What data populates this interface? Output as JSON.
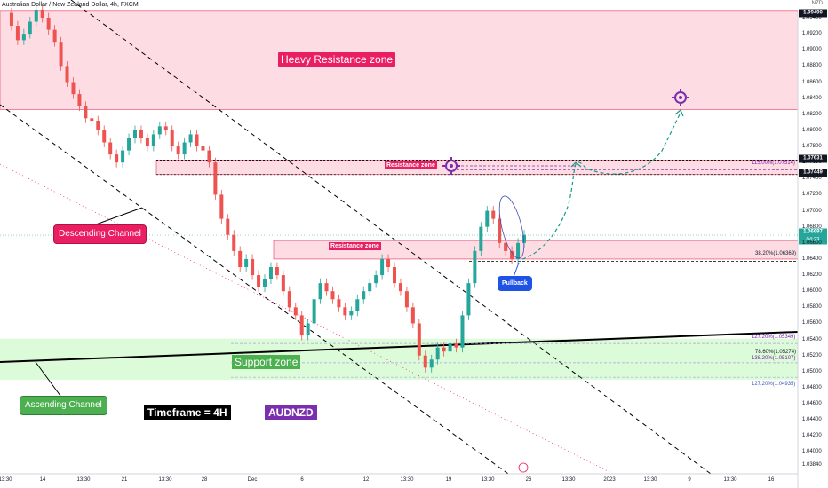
{
  "header": {
    "title": "Australian Dollar / New Zealand Dollar, 4h, FXCM",
    "currency": "NZD"
  },
  "colors": {
    "resistance_fill": "#fddde3",
    "resistance_border": "#e6325a",
    "support_fill": "#dcfbd8",
    "up_candle": "#26a69a",
    "down_candle": "#ef5350",
    "label_red": "#e91e63",
    "label_green": "#4caf50",
    "label_blue": "#1e53e5",
    "label_purple": "#7b2fae",
    "projection": "#169b85",
    "fib_text": "#7b1fa2"
  },
  "annotations": {
    "heavy_resistance": "Heavy Resistance zone",
    "resistance_upper": "Resistance zone",
    "resistance_lower": "Resistance zone",
    "descending_channel": "Descending Channel",
    "ascending_channel": "Ascending Channel",
    "support_zone": "Support zone",
    "timeframe": "Timeframe = 4H",
    "symbol": "AUDNZD",
    "pullback": "Pullback",
    "fib_115": "115.00%(1.07514)",
    "fib_38": "38.20%(1.06369)",
    "fib_127a": "127.20%(1.05349)",
    "fib_78": "78.60%(1.05274)",
    "fib_138": "138.20%(1.05107)",
    "fib_127b": "127.20%(1.04935)"
  },
  "price_tags": {
    "top": "1.09490",
    "t1": "1.07631",
    "t2": "1.07449",
    "current": "1.06697",
    "countdown": "04:23"
  },
  "chart_data": {
    "type": "candlestick",
    "title": "Australian Dollar / New Zealand Dollar, 4h, FXCM",
    "y_axis_ticks": [
      "1.09400",
      "1.09200",
      "1.09000",
      "1.08800",
      "1.08600",
      "1.08400",
      "1.08200",
      "1.08000",
      "1.07800",
      "1.07600",
      "1.07400",
      "1.07200",
      "1.07000",
      "1.06800",
      "1.06600",
      "1.06400",
      "1.06200",
      "1.06000",
      "1.05800",
      "1.05600",
      "1.05400",
      "1.05200",
      "1.05000",
      "1.04800",
      "1.04600",
      "1.04400",
      "1.04200",
      "1.04000",
      "1.03840"
    ],
    "x_axis_ticks": [
      "13:30",
      "14",
      "13:30",
      "21",
      "13:30",
      "28",
      "Dec",
      "6",
      "12",
      "13:30",
      "19",
      "13:30",
      "26",
      "13:30",
      "2023",
      "13:30",
      "9",
      "13:30",
      "16"
    ],
    "ylim": [
      1.0376,
      1.0949
    ],
    "zones": [
      {
        "name": "Heavy Resistance zone",
        "from": 1.0826,
        "to": 1.0949
      },
      {
        "name": "Resistance zone",
        "from": 1.0745,
        "to": 1.0763
      },
      {
        "name": "Resistance zone",
        "from": 1.064,
        "to": 1.0663
      },
      {
        "name": "Support zone",
        "from": 1.049,
        "to": 1.0541
      }
    ],
    "price_path": [
      1.0946,
      1.093,
      1.0912,
      1.092,
      1.0935,
      1.095,
      1.094,
      1.0925,
      1.091,
      1.088,
      1.086,
      1.0845,
      1.083,
      1.0815,
      1.0812,
      1.08,
      1.0785,
      1.077,
      1.076,
      1.0775,
      1.079,
      1.08,
      1.079,
      1.078,
      1.0795,
      1.0805,
      1.08,
      1.078,
      1.077,
      1.0785,
      1.0795,
      1.078,
      1.0775,
      1.076,
      1.072,
      1.069,
      1.067,
      1.065,
      1.063,
      1.064,
      1.062,
      1.0605,
      1.0615,
      1.063,
      1.062,
      1.06,
      1.058,
      1.057,
      1.0545,
      1.056,
      1.059,
      1.061,
      1.06,
      1.059,
      1.058,
      1.057,
      1.0575,
      1.059,
      1.06,
      1.061,
      1.062,
      1.064,
      1.063,
      1.061,
      1.06,
      1.058,
      1.056,
      1.052,
      1.0505,
      1.0515,
      1.053,
      1.0525,
      1.0535,
      1.053,
      1.057,
      1.061,
      1.065,
      1.068,
      1.07,
      1.069,
      1.066,
      1.065,
      1.064,
      1.066,
      1.067
    ]
  }
}
